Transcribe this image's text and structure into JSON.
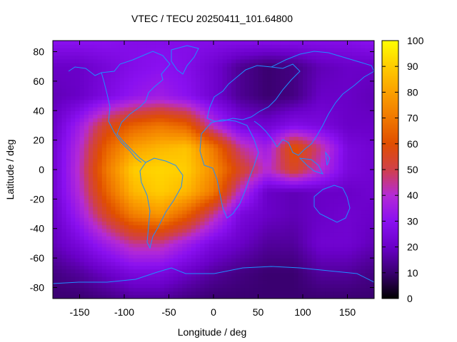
{
  "chart_data": {
    "type": "heatmap",
    "title": "VTEC / TECU 20250411_101.64800",
    "xlabel": "Longitude / deg",
    "ylabel": "Latitude / deg",
    "xlim": [
      -180,
      180
    ],
    "ylim": [
      -87.5,
      87.5
    ],
    "xticks": [
      -150,
      -100,
      -50,
      0,
      50,
      100,
      150
    ],
    "yticks": [
      -80,
      -60,
      -40,
      -20,
      0,
      20,
      40,
      60,
      80
    ],
    "colorbar": {
      "range": [
        0,
        100
      ],
      "ticks": [
        0,
        10,
        20,
        30,
        40,
        50,
        60,
        70,
        80,
        90,
        100
      ],
      "palette": [
        "#000000",
        "#3a0070",
        "#6a00c8",
        "#8a10f0",
        "#b42ad6",
        "#d0404a",
        "#e04e00",
        "#f07800",
        "#fba000",
        "#ffcc00",
        "#ffff00"
      ]
    },
    "grid": {
      "resolution_deg": [
        5,
        2.5
      ],
      "longitudes": [
        -180,
        -150,
        -120,
        -90,
        -60,
        -30,
        0,
        30,
        60,
        90,
        120,
        150,
        180
      ],
      "latitudes": [
        87.5,
        70,
        50,
        30,
        15,
        0,
        -15,
        -30,
        -50,
        -70,
        -87.5
      ],
      "values": [
        [
          30,
          30,
          30,
          28,
          28,
          28,
          28,
          28,
          28,
          28,
          28,
          28,
          30
        ],
        [
          20,
          20,
          24,
          28,
          30,
          28,
          22,
          14,
          10,
          12,
          18,
          20,
          20
        ],
        [
          18,
          20,
          26,
          32,
          35,
          30,
          22,
          14,
          10,
          12,
          20,
          20,
          18
        ],
        [
          20,
          35,
          55,
          65,
          70,
          65,
          40,
          25,
          22,
          28,
          25,
          20,
          20
        ],
        [
          22,
          40,
          65,
          80,
          85,
          88,
          70,
          45,
          35,
          62,
          45,
          25,
          22
        ],
        [
          22,
          42,
          70,
          90,
          92,
          90,
          75,
          55,
          40,
          55,
          40,
          25,
          22
        ],
        [
          22,
          40,
          65,
          85,
          90,
          85,
          70,
          40,
          20,
          18,
          20,
          20,
          22
        ],
        [
          20,
          35,
          55,
          72,
          78,
          65,
          45,
          25,
          20,
          18,
          20,
          22,
          20
        ],
        [
          18,
          25,
          35,
          45,
          45,
          35,
          25,
          20,
          15,
          15,
          22,
          22,
          18
        ],
        [
          12,
          15,
          20,
          25,
          25,
          20,
          15,
          12,
          10,
          10,
          15,
          15,
          12
        ],
        [
          10,
          10,
          12,
          15,
          15,
          12,
          10,
          10,
          10,
          10,
          10,
          10,
          10
        ]
      ]
    }
  }
}
